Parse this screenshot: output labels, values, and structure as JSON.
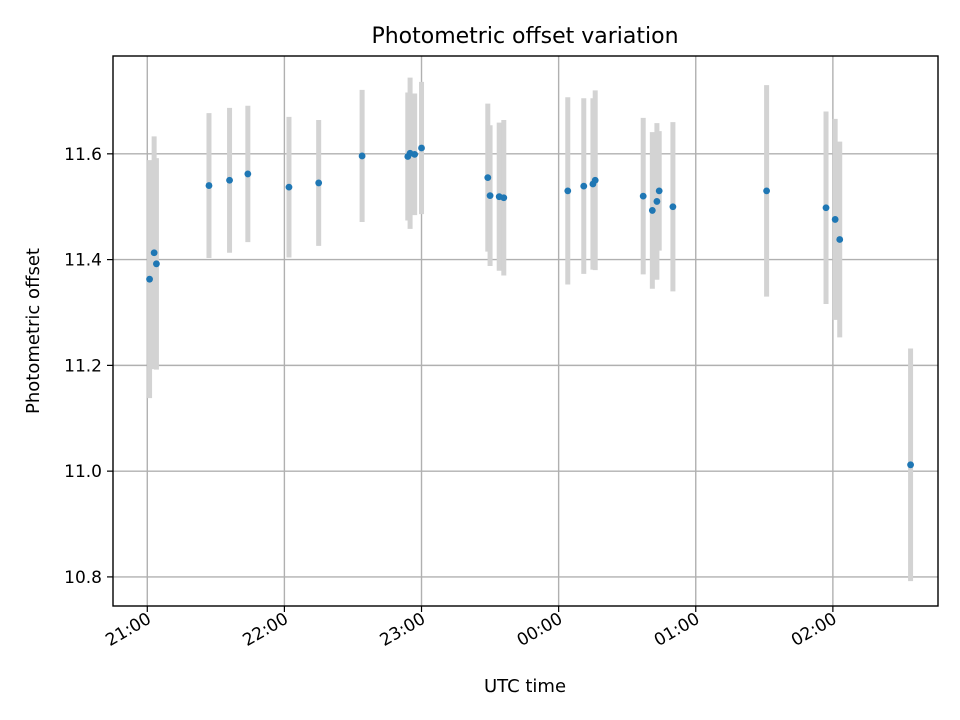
{
  "chart_data": {
    "type": "scatter",
    "title": "Photometric offset variation",
    "xlabel": "UTC time",
    "ylabel": "Photometric offset",
    "x_unit": "hours",
    "xlim": [
      "20:45",
      "02:46"
    ],
    "ylim": [
      10.745,
      11.785
    ],
    "x_ticks": [
      "21:00",
      "22:00",
      "23:00",
      "00:00",
      "01:00",
      "02:00"
    ],
    "y_ticks": [
      "10.8",
      "11.0",
      "11.2",
      "11.4",
      "11.6"
    ],
    "grid": true,
    "colors": {
      "point": "#1f77b4",
      "errorbar": "#d3d3d3",
      "grid": "#b0b0b0"
    },
    "series": [
      {
        "x": [
          "21:01",
          "21:03",
          "21:04",
          "21:27",
          "21:36",
          "21:44",
          "22:02",
          "22:15",
          "22:34",
          "22:54",
          "22:55",
          "22:57",
          "23:00",
          "23:29",
          "23:30",
          "23:34",
          "23:36",
          "00:04",
          "00:11",
          "00:15",
          "00:16",
          "00:37",
          "00:41",
          "00:43",
          "00:44",
          "00:50",
          "01:31",
          "01:57",
          "02:01",
          "02:03",
          "02:34"
        ],
        "y": [
          11.363,
          11.413,
          11.392,
          11.54,
          11.55,
          11.562,
          11.537,
          11.545,
          11.596,
          11.595,
          11.601,
          11.599,
          11.611,
          11.555,
          11.521,
          11.519,
          11.517,
          11.53,
          11.539,
          11.543,
          11.55,
          11.52,
          11.493,
          11.51,
          11.53,
          11.5,
          11.53,
          11.498,
          11.476,
          11.438,
          11.012
        ],
        "yerr": [
          0.225,
          0.22,
          0.2,
          0.137,
          0.137,
          0.129,
          0.133,
          0.119,
          0.125,
          0.121,
          0.143,
          0.115,
          0.125,
          0.14,
          0.133,
          0.14,
          0.147,
          0.177,
          0.166,
          0.162,
          0.17,
          0.148,
          0.148,
          0.148,
          0.113,
          0.16,
          0.2,
          0.182,
          0.19,
          0.185,
          0.22
        ]
      }
    ]
  }
}
